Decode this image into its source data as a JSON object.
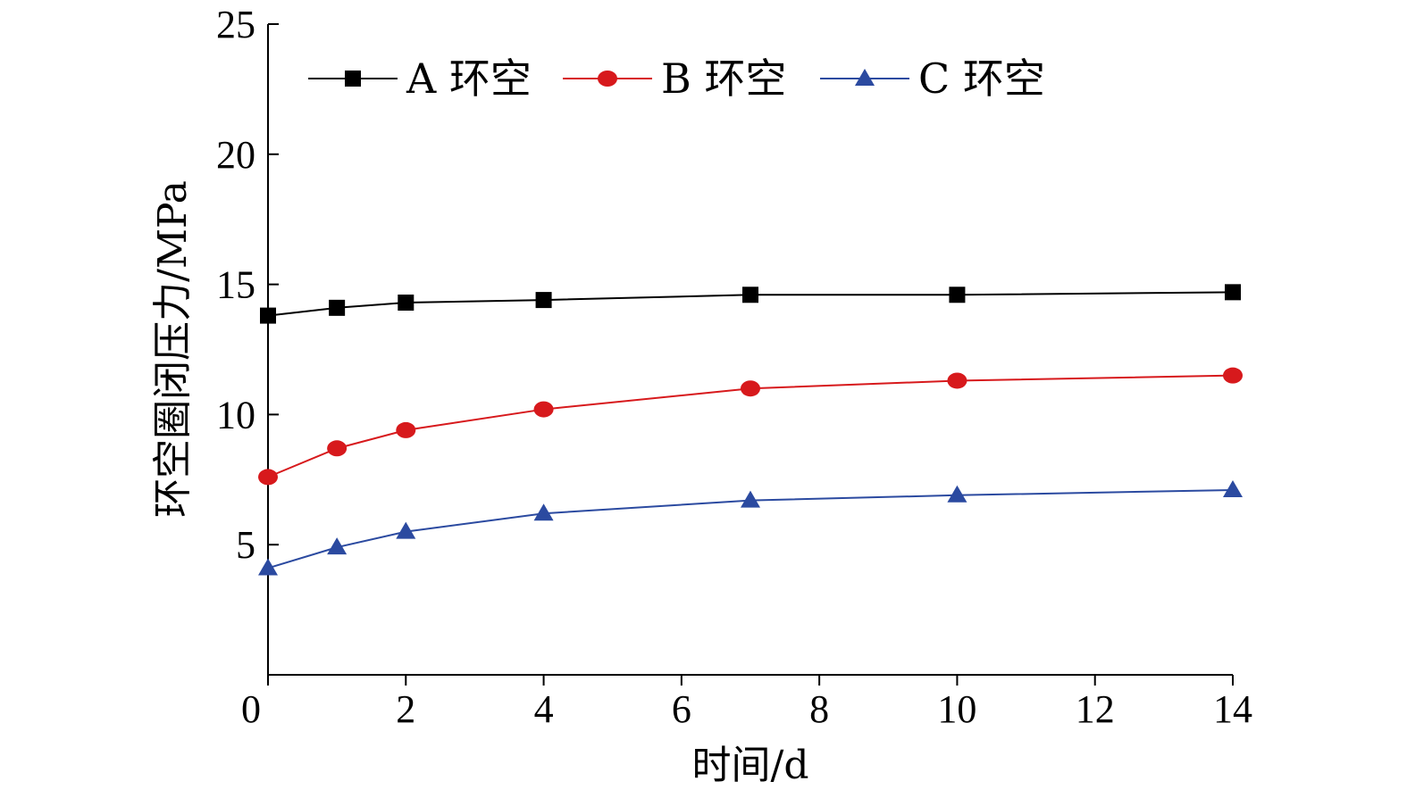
{
  "chart_data": {
    "type": "line",
    "title": "",
    "xlabel": "时间/d",
    "ylabel": "环空圈闭压力/MPa",
    "xlim": [
      0,
      14
    ],
    "ylim": [
      0,
      25
    ],
    "xticks": [
      0,
      2,
      4,
      6,
      8,
      10,
      12,
      14
    ],
    "yticks": [
      5,
      10,
      15,
      20,
      25
    ],
    "x": [
      0,
      1,
      2,
      4,
      7,
      10,
      14
    ],
    "grid": false,
    "legend_position": "top",
    "series": [
      {
        "name": "A 环空",
        "marker": "square",
        "color": "#000000",
        "values": [
          13.8,
          14.1,
          14.3,
          14.4,
          14.6,
          14.6,
          14.7
        ]
      },
      {
        "name": "B 环空",
        "marker": "circle",
        "color": "#d7191c",
        "values": [
          7.6,
          8.7,
          9.4,
          10.2,
          11.0,
          11.3,
          11.5
        ]
      },
      {
        "name": "C 环空",
        "marker": "triangle",
        "color": "#2b4aa0",
        "values": [
          4.1,
          4.9,
          5.5,
          6.2,
          6.7,
          6.9,
          7.1
        ]
      }
    ]
  }
}
